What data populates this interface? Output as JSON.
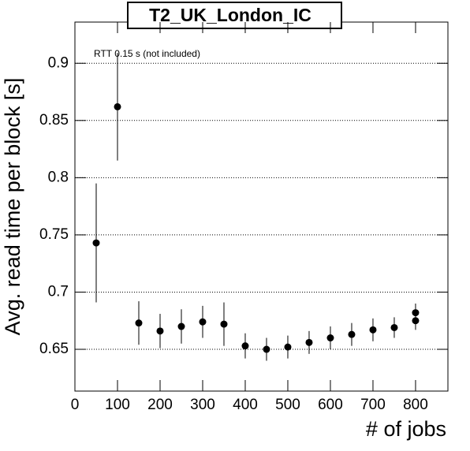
{
  "chart_data": {
    "type": "scatter",
    "title": "T2_UK_London_IC",
    "x_label": "# of jobs",
    "y_label": "Avg. read time per block [s]",
    "annotation": "RTT 0.15 s (not included)",
    "series": [
      {
        "name": "T2_UK_London_IC",
        "color": "#000000",
        "x": [
          50,
          100,
          150,
          200,
          250,
          300,
          350,
          400,
          450,
          500,
          550,
          600,
          650,
          700,
          750,
          800,
          800
        ],
        "values": [
          0.743,
          0.862,
          0.673,
          0.666,
          0.67,
          0.674,
          0.672,
          0.653,
          0.65,
          0.652,
          0.656,
          0.66,
          0.663,
          0.667,
          0.669,
          0.682,
          0.675
        ],
        "errors": [
          0.052,
          0.047,
          0.019,
          0.015,
          0.015,
          0.014,
          0.019,
          0.011,
          0.01,
          0.01,
          0.01,
          0.01,
          0.01,
          0.01,
          0.009,
          0.008,
          0.008
        ]
      }
    ],
    "xlim": [
      0,
      876
    ],
    "ylim": [
      0.6135,
      0.936
    ],
    "xticks": [
      0,
      100,
      200,
      300,
      400,
      500,
      600,
      700,
      800
    ],
    "yticks": [
      0.65,
      0.7,
      0.75,
      0.8,
      0.85,
      0.9
    ],
    "grid": "y"
  }
}
